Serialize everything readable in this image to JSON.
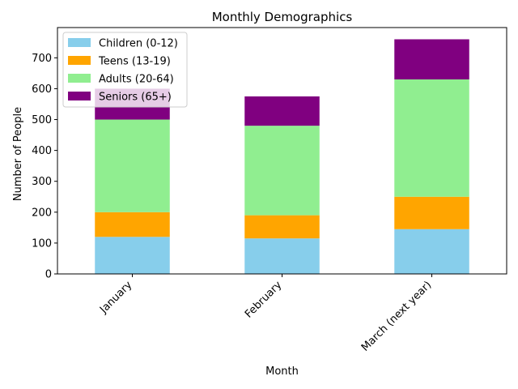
{
  "chart_data": {
    "type": "bar",
    "stacked": true,
    "title": "Monthly Demographics",
    "xlabel": "Month",
    "ylabel": "Number of People",
    "categories": [
      "January",
      "February",
      "March (next year)"
    ],
    "series": [
      {
        "name": "Children (0-12)",
        "color": "#87ceeb",
        "values": [
          120,
          115,
          145
        ]
      },
      {
        "name": "Teens (13-19)",
        "color": "#ffa500",
        "values": [
          80,
          75,
          105
        ]
      },
      {
        "name": "Adults (20-64)",
        "color": "#90ee90",
        "values": [
          300,
          290,
          380
        ]
      },
      {
        "name": "Seniors (65+)",
        "color": "#800080",
        "values": [
          100,
          95,
          130
        ]
      }
    ],
    "yticks": [
      0,
      100,
      200,
      300,
      400,
      500,
      600,
      700
    ],
    "ylim": [
      0,
      798
    ],
    "grid": false,
    "legend_position": "top-left",
    "xtick_rotation": 45
  }
}
